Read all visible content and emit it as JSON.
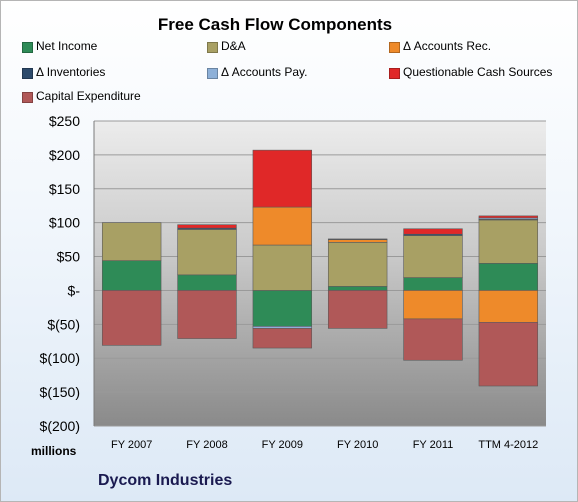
{
  "chart_data": {
    "type": "bar",
    "stacked": true,
    "title": "Free Cash Flow Components",
    "company": "Dycom Industries",
    "y_unit_label": "millions",
    "categories": [
      "FY 2007",
      "FY 2008",
      "FY 2009",
      "FY 2010",
      "FY 2011",
      "TTM 4-2012"
    ],
    "ylim": [
      -200,
      250
    ],
    "yticks": [
      250,
      200,
      150,
      100,
      50,
      0,
      -50,
      -100,
      -150,
      -200
    ],
    "ytick_labels": [
      "$250",
      "$200",
      "$150",
      "$100",
      "$50",
      "$-",
      "$(50)",
      "$(100)",
      "$(150)",
      "$(200)"
    ],
    "grid": true,
    "legend_position": "top",
    "series": [
      {
        "name": "Net Income",
        "color": "#2e8b57",
        "values": [
          44,
          23,
          -53,
          6,
          19,
          40
        ]
      },
      {
        "name": "D&A",
        "color": "#a8a064",
        "values": [
          56,
          67,
          67,
          65,
          62,
          64
        ]
      },
      {
        "name": "Δ Accounts Rec.",
        "color": "#ee8a2a",
        "values": [
          0,
          0,
          56,
          4,
          -42,
          -47
        ]
      },
      {
        "name": "Δ Inventories",
        "color": "#2c4a6b",
        "values": [
          0,
          2,
          0,
          1,
          2,
          1
        ]
      },
      {
        "name": "Δ Accounts Pay.",
        "color": "#8db0d8",
        "values": [
          0,
          0,
          -3,
          0,
          0,
          2
        ]
      },
      {
        "name": "Questionable Cash Sources",
        "color": "#e02828",
        "values": [
          0,
          5,
          84,
          0,
          8,
          3
        ]
      },
      {
        "name": "Capital Expenditure",
        "color": "#b05858",
        "values": [
          -81,
          -71,
          -29,
          -56,
          -61,
          -94
        ]
      }
    ]
  }
}
